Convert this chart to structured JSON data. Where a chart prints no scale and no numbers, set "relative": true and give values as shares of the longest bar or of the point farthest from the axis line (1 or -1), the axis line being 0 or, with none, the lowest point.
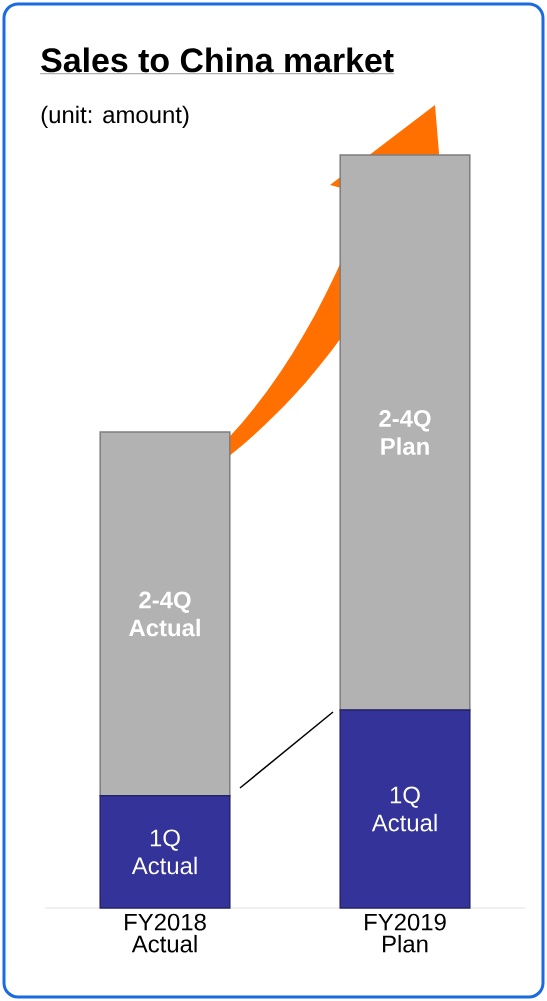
{
  "chart_data": {
    "type": "bar",
    "title": "Sales to China market",
    "subtitle": "(unit: amount)",
    "categories": [
      "FY2018 Actual",
      "FY2019 Plan"
    ],
    "relative": true,
    "stacked": true,
    "series": [
      {
        "color": "#333399",
        "values": [
          0.149,
          0.263
        ]
      },
      {
        "color": "#b2b2b2",
        "values": [
          0.483,
          0.737
        ]
      }
    ],
    "annotations": [
      "1Q Actual",
      "1Q Actual",
      "2-4Q Actual",
      "2-4Q Plan"
    ]
  }
}
